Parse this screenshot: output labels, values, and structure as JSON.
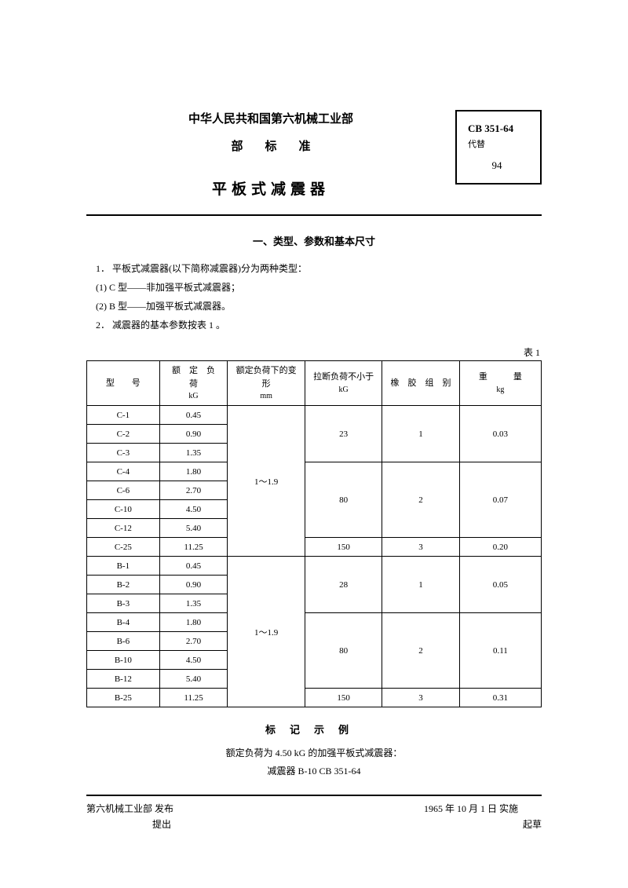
{
  "header": {
    "org": "中华人民共和国第六机械工业部",
    "dept_standard": "部标准",
    "doc_title": "平板式减震器",
    "code_box": {
      "code": "CB 351-64",
      "replace_label": "代替",
      "number": "94"
    }
  },
  "section1": {
    "title": "一、类型、参数和基本尺寸",
    "lines": [
      "1．  平板式减震器(以下简称减震器)分为两种类型：",
      "(1)  C 型——非加强平板式减震器；",
      "(2)  B 型——加强平板式减震器。",
      "2．  减震器的基本参数按表 1 。"
    ]
  },
  "table1": {
    "label": "表 1",
    "columns": {
      "model": {
        "label": "型　　号",
        "widthpct": 16
      },
      "rated_load": {
        "label": "额　定　负　荷",
        "unit": "kG",
        "widthpct": 15
      },
      "deformation": {
        "label": "额定负荷下的变　　形",
        "unit": "mm",
        "widthpct": 17
      },
      "break_load": {
        "label": "拉断负荷不小于",
        "unit": "kG",
        "widthpct": 17
      },
      "rubber_group": {
        "label": "橡　胶　组　别",
        "widthpct": 17
      },
      "weight": {
        "label": "重　　　量",
        "unit": "kg",
        "widthpct": 18
      }
    },
    "deformation_value": "1～1.9",
    "groups_c": [
      {
        "models": [
          "C-1",
          "C-2",
          "C-3"
        ],
        "loads": [
          "0.45",
          "0.90",
          "1.35"
        ],
        "break": "23",
        "rubber": "1",
        "weight": "0.03"
      },
      {
        "models": [
          "C-4",
          "C-6",
          "C-10",
          "C-12"
        ],
        "loads": [
          "1.80",
          "2.70",
          "4.50",
          "5.40"
        ],
        "break": "80",
        "rubber": "2",
        "weight": "0.07"
      },
      {
        "models": [
          "C-25"
        ],
        "loads": [
          "11.25"
        ],
        "break": "150",
        "rubber": "3",
        "weight": "0.20"
      }
    ],
    "groups_b": [
      {
        "models": [
          "B-1",
          "B-2",
          "B-3"
        ],
        "loads": [
          "0.45",
          "0.90",
          "1.35"
        ],
        "break": "28",
        "rubber": "1",
        "weight": "0.05"
      },
      {
        "models": [
          "B-4",
          "B-6",
          "B-10",
          "B-12"
        ],
        "loads": [
          "1.80",
          "2.70",
          "4.50",
          "5.40"
        ],
        "break": "80",
        "rubber": "2",
        "weight": "0.11"
      },
      {
        "models": [
          "B-25"
        ],
        "loads": [
          "11.25"
        ],
        "break": "150",
        "rubber": "3",
        "weight": "0.31"
      }
    ]
  },
  "marking": {
    "title": "标记示例",
    "line1": "额定负荷为 4.50 kG 的加强平板式减震器：",
    "line2": "减震器 B-10    CB 351-64"
  },
  "footer": {
    "left_line1": "第六机械工业部  发布",
    "left_line2": "提出",
    "right_line1": "1965 年 10 月 1 日   实施",
    "right_line2": "起草"
  },
  "style": {
    "text_color": "#000000",
    "background": "#ffffff",
    "font_family": "SimSun, STSong, serif",
    "border_color": "#000000"
  }
}
